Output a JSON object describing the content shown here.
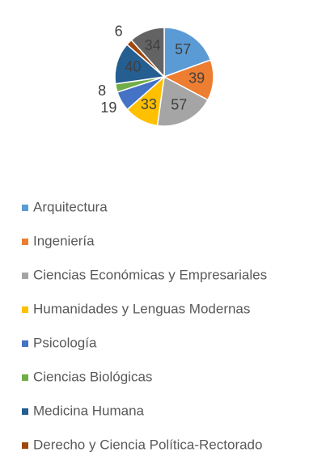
{
  "chart_data": {
    "type": "pie",
    "categories": [
      "Arquitectura",
      "Ingeniería",
      "Ciencias Económicas y Empresariales",
      "Humanidades y  Lenguas Modernas",
      "Psicología",
      "Ciencias Biológicas",
      "Medicina Humana",
      "Derecho y Ciencia Política-Rectorado",
      null
    ],
    "values": [
      57,
      39,
      57,
      33,
      19,
      8,
      40,
      6,
      34
    ],
    "colors": [
      "#5b9bd5",
      "#ed7d31",
      "#a5a5a5",
      "#ffc000",
      "#4472c4",
      "#70ad47",
      "#255e91",
      "#9e480e",
      "#636363"
    ],
    "legend": "bottom"
  }
}
